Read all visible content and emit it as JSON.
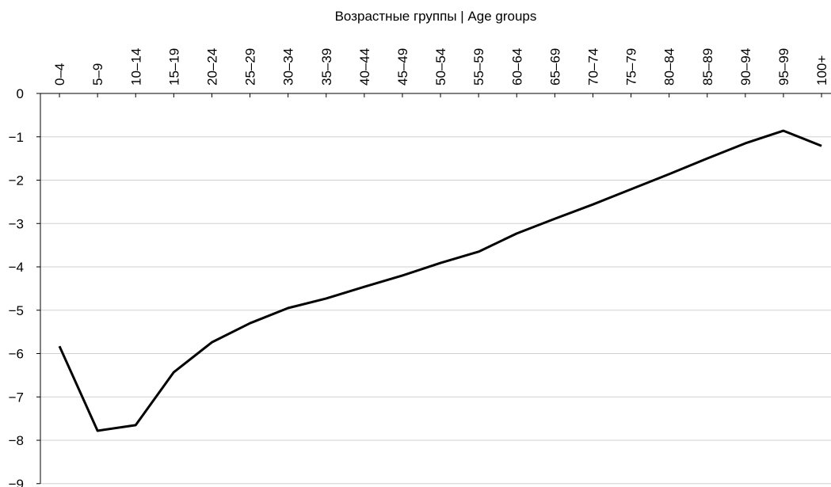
{
  "chart_data": {
    "type": "line",
    "title": "Возрастные группы | Age groups",
    "categories": [
      "0–4",
      "5–9",
      "10–14",
      "15–19",
      "20–24",
      "25–29",
      "30–34",
      "35–39",
      "40–44",
      "45–49",
      "50–54",
      "55–59",
      "60–64",
      "65–69",
      "70–74",
      "75–79",
      "80–84",
      "85–89",
      "90–94",
      "95–99",
      "100+"
    ],
    "series": [
      {
        "color": "#000000",
        "values": [
          -5.83,
          -7.78,
          -7.65,
          -6.43,
          -5.74,
          -5.3,
          -4.95,
          -4.73,
          -4.46,
          -4.2,
          -3.91,
          -3.65,
          -3.23,
          -2.89,
          -2.56,
          -2.21,
          -1.86,
          -1.5,
          -1.15,
          -0.86,
          -1.21
        ]
      }
    ],
    "ylim": [
      -9,
      0
    ],
    "yticks": [
      0,
      {
        "value": -1,
        "label": "−1"
      },
      {
        "value": -2,
        "label": "−2"
      },
      {
        "value": -3,
        "label": "−3"
      },
      {
        "value": -4,
        "label": "−4"
      },
      {
        "value": -5,
        "label": "−5"
      },
      {
        "value": -6,
        "label": "−6"
      },
      {
        "value": -7,
        "label": "−7"
      },
      {
        "value": -8,
        "label": "−8"
      },
      {
        "value": -9,
        "label": "−9"
      }
    ],
    "grid": true
  }
}
